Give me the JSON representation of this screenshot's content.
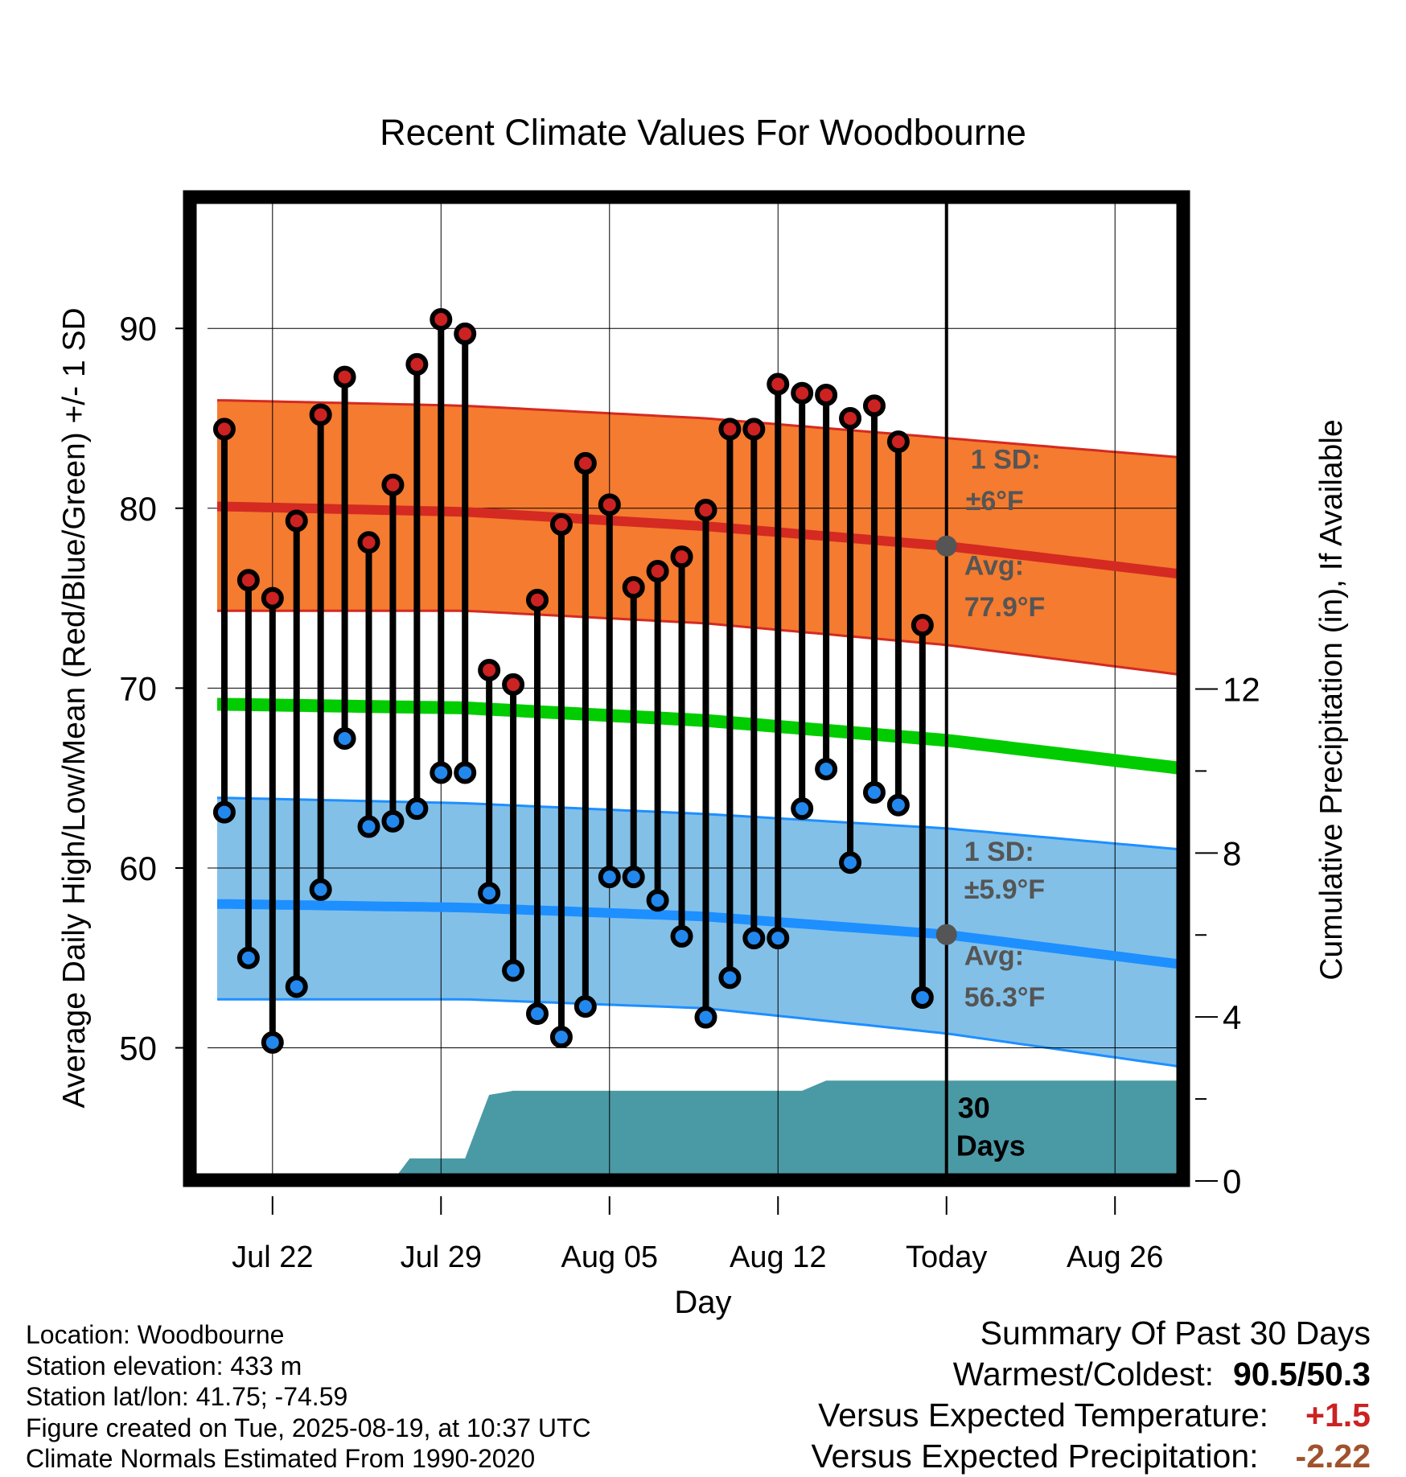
{
  "chart_data": {
    "type": "line",
    "title": "Recent Climate Values For Woodbourne",
    "xlabel": "Day",
    "ylabel_left": "Average Daily High/Low/Mean (Red/Blue/Green) +/- 1 SD",
    "ylabel_right": "Cumulative Precipitation (in), If Available",
    "x_tick_labels": [
      "Jul 22",
      "Jul 29",
      "Aug 05",
      "Aug 12",
      "Today",
      "Aug 26"
    ],
    "x_tick_days": [
      2,
      9,
      16,
      23,
      30,
      37
    ],
    "x_range_days": [
      -0.7,
      40
    ],
    "today_day": 30,
    "y_left_ticks": [
      50,
      60,
      70,
      80,
      90
    ],
    "y_left_range": [
      42.6,
      97.3
    ],
    "y_right_ticks": [
      0,
      4,
      8,
      12
    ],
    "y_right_range": [
      0,
      24
    ],
    "days": [
      -1,
      0,
      1,
      2,
      3,
      4,
      5,
      6,
      7,
      8,
      9,
      10,
      11,
      12,
      13,
      14,
      15,
      16,
      17,
      18,
      19,
      20,
      21,
      22,
      23,
      24,
      25,
      26,
      27,
      28,
      29
    ],
    "high": [
      null,
      84.4,
      76.0,
      75.0,
      79.3,
      85.2,
      87.3,
      78.1,
      81.3,
      88.0,
      90.5,
      89.7,
      71.0,
      70.2,
      74.9,
      79.1,
      82.5,
      80.2,
      75.6,
      76.5,
      77.3,
      79.9,
      84.4,
      84.4,
      86.9,
      86.4,
      86.3,
      85.0,
      85.7,
      83.7,
      73.5
    ],
    "low": [
      null,
      63.1,
      55.0,
      50.3,
      53.4,
      58.8,
      67.2,
      62.3,
      62.6,
      63.3,
      65.3,
      65.3,
      58.6,
      54.3,
      51.9,
      50.6,
      52.3,
      59.5,
      59.5,
      58.2,
      56.2,
      51.7,
      53.9,
      56.1,
      56.1,
      63.3,
      65.5,
      60.3,
      64.2,
      63.5,
      52.8
    ],
    "normal_days": [
      0,
      10,
      20,
      30,
      40
    ],
    "normal_high_mean": [
      80.1,
      79.8,
      79.0,
      77.9,
      76.3
    ],
    "normal_high_plus_sd": [
      86.0,
      85.7,
      85.0,
      83.9,
      82.8
    ],
    "normal_high_minus_sd": [
      74.3,
      74.3,
      73.6,
      72.4,
      70.7
    ],
    "normal_mean": [
      69.1,
      68.9,
      68.2,
      67.1,
      65.5
    ],
    "normal_low_mean": [
      58.0,
      57.8,
      57.3,
      56.3,
      54.6
    ],
    "normal_low_plus_sd": [
      63.9,
      63.6,
      63.0,
      62.2,
      61.0
    ],
    "normal_low_minus_sd": [
      52.7,
      52.7,
      52.2,
      50.8,
      48.9
    ],
    "precip_points": [
      [
        7,
        0
      ],
      [
        7.7,
        0.55
      ],
      [
        10,
        0.55
      ],
      [
        11,
        2.1
      ],
      [
        12,
        2.2
      ],
      [
        24,
        2.2
      ],
      [
        25,
        2.45
      ],
      [
        40,
        2.45
      ]
    ],
    "annotations": {
      "high_sd_line1": "1 SD:",
      "high_sd_line2": "±6°F",
      "high_avg_line1": "Avg:",
      "high_avg_line2": "77.9°F",
      "low_sd_line1": "1 SD:",
      "low_sd_line2": "±5.9°F",
      "low_avg_line1": "Avg:",
      "low_avg_line2": "56.3°F",
      "days_line1": "30",
      "days_line2": "Days"
    },
    "colors": {
      "high_band": "#f47b2f",
      "high_line": "#d42a22",
      "mean_line": "#00cc00",
      "low_band": "#82c0e8",
      "low_line": "#1e8fff",
      "precip": "#4a9aa6",
      "high_dot": "#cc2222",
      "low_dot": "#2288ee",
      "annotation": "#555555",
      "frame": "#000000"
    }
  },
  "info": {
    "location": "Location: Woodbourne",
    "elevation": "Station elevation: 433 m",
    "latlon": "Station lat/lon: 41.75; -74.59",
    "created": "Figure created on Tue, 2025-08-19, at 10:37 UTC",
    "normals": "Climate Normals Estimated From 1990-2020"
  },
  "summary": {
    "title": "Summary Of Past 30 Days",
    "warm_cold_label": "Warmest/Coldest:",
    "warm_cold_value": "90.5/50.3",
    "temp_label": "Versus Expected Temperature:",
    "temp_value": "+1.5",
    "temp_color": "#cc2222",
    "precip_label": "Versus Expected Precipitation:",
    "precip_value": "-2.22",
    "precip_color": "#a0522d"
  }
}
